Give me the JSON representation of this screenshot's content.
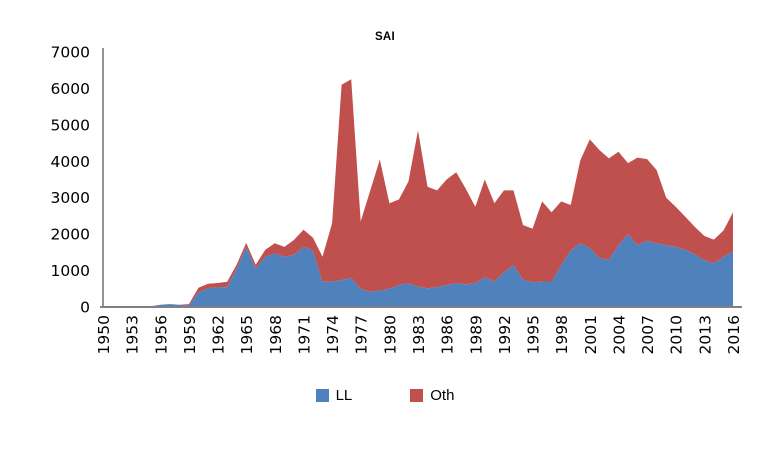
{
  "chart_data": {
    "type": "area",
    "stacked": true,
    "title": "SAI",
    "grid": false,
    "legend_position": "bottom",
    "xlabel": "",
    "ylabel": "",
    "ylim": [
      0,
      7000
    ],
    "yticks": [
      0,
      1000,
      2000,
      3000,
      4000,
      5000,
      6000,
      7000
    ],
    "xtick_labels": [
      "1950",
      "1953",
      "1956",
      "1959",
      "1962",
      "1965",
      "1968",
      "1971",
      "1974",
      "1977",
      "1980",
      "1983",
      "1986",
      "1989",
      "1992",
      "1995",
      "1998",
      "2001",
      "2004",
      "2007",
      "2010",
      "2013",
      "2016"
    ],
    "x": [
      1950,
      1951,
      1952,
      1953,
      1954,
      1955,
      1956,
      1957,
      1958,
      1959,
      1960,
      1961,
      1962,
      1963,
      1964,
      1965,
      1966,
      1967,
      1968,
      1969,
      1970,
      1971,
      1972,
      1973,
      1974,
      1975,
      1976,
      1977,
      1978,
      1979,
      1980,
      1981,
      1982,
      1983,
      1984,
      1985,
      1986,
      1987,
      1988,
      1989,
      1990,
      1991,
      1992,
      1993,
      1994,
      1995,
      1996,
      1997,
      1998,
      1999,
      2000,
      2001,
      2002,
      2003,
      2004,
      2005,
      2006,
      2007,
      2008,
      2009,
      2010,
      2011,
      2012,
      2013,
      2014,
      2015,
      2016
    ],
    "series": [
      {
        "name": "LL",
        "color": "#4F81BD",
        "values": [
          0,
          0,
          0,
          0,
          5,
          20,
          60,
          80,
          60,
          40,
          400,
          520,
          550,
          540,
          1050,
          1650,
          1060,
          1380,
          1470,
          1380,
          1430,
          1650,
          1550,
          690,
          700,
          740,
          800,
          500,
          420,
          450,
          500,
          600,
          650,
          560,
          510,
          550,
          600,
          650,
          620,
          650,
          820,
          700,
          950,
          1150,
          750,
          680,
          700,
          700,
          1150,
          1550,
          1750,
          1620,
          1340,
          1300,
          1700,
          2000,
          1700,
          1820,
          1750,
          1700,
          1650,
          1570,
          1450,
          1280,
          1200,
          1380,
          1520
        ]
      },
      {
        "name": "Oth",
        "color": "#C0504D",
        "values": [
          0,
          0,
          0,
          0,
          0,
          0,
          0,
          0,
          0,
          40,
          130,
          120,
          110,
          150,
          110,
          110,
          100,
          190,
          280,
          270,
          410,
          470,
          350,
          690,
          1600,
          5360,
          5450,
          1850,
          2780,
          3600,
          2350,
          2350,
          2800,
          4290,
          2790,
          2650,
          2900,
          3050,
          2630,
          2100,
          2680,
          2150,
          2250,
          2050,
          1500,
          1470,
          2200,
          1900,
          1750,
          1250,
          2280,
          2980,
          2970,
          2780,
          2560,
          1950,
          2400,
          2240,
          2010,
          1300,
          1100,
          910,
          750,
          670,
          650,
          720,
          1080
        ]
      }
    ]
  },
  "legend": {
    "items": [
      {
        "label": "LL",
        "color": "#4F81BD"
      },
      {
        "label": "Oth",
        "color": "#C0504D"
      }
    ]
  },
  "colors": {
    "axis": "#808080",
    "text": "#000000",
    "background": "#FFFFFF"
  }
}
